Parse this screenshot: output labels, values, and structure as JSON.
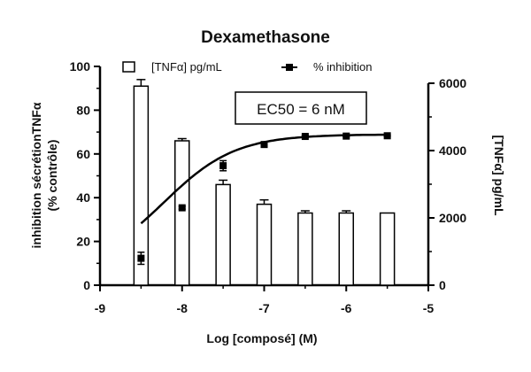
{
  "chart_data": {
    "type": "bar",
    "title": "Dexamethasone",
    "xlabel": "Log [composé] (M)",
    "ylabel_left_line1": "inhibition sécrétionTNFα",
    "ylabel_left_line2": "(% contrôle)",
    "ylabel_right": "[TNFα] pg/mL",
    "xlim": [
      -9,
      -5
    ],
    "ylim_left": [
      0,
      100
    ],
    "ylim_right": [
      0,
      6500
    ],
    "x_ticks": [
      -9,
      -8,
      -7,
      -6,
      -5
    ],
    "y_left_ticks": [
      0,
      20,
      40,
      60,
      80,
      100
    ],
    "y_right_ticks": [
      0,
      2000,
      4000,
      6000
    ],
    "x_tick_labels": [
      "-9",
      "-8",
      "-7",
      "-6",
      "-5"
    ],
    "y_left_tick_labels": [
      "0",
      "20",
      "40",
      "60",
      "80",
      "100"
    ],
    "y_right_tick_labels": [
      "0",
      "2000",
      "4000",
      "6000"
    ],
    "bars": {
      "name": "[TNFα] pg/mL",
      "axis": "left",
      "x": [
        -8.5,
        -8.0,
        -7.5,
        -7.0,
        -6.5,
        -6.0,
        -5.5
      ],
      "values": [
        91,
        66,
        46,
        37,
        33,
        33,
        33
      ],
      "errors": [
        3,
        1,
        2,
        2,
        1,
        1,
        0
      ]
    },
    "series": [
      {
        "name": "% inhibition",
        "axis": "right",
        "x": [
          -8.5,
          -8.0,
          -7.5,
          -7.0,
          -6.5,
          -6.0,
          -5.5
        ],
        "values": [
          800,
          2300,
          3550,
          4180,
          4420,
          4430,
          4440
        ],
        "errors": [
          180,
          40,
          150,
          40,
          30,
          20,
          20
        ]
      }
    ],
    "fit_curve": {
      "model": "sigmoidal",
      "bottom": 450,
      "top": 4480,
      "log_ec50": -8.22,
      "hill": 1.0
    },
    "annotation": "EC50 = 6 nM",
    "legend_position": "top",
    "grid": false,
    "colors": {
      "bar_fill": "#ffffff",
      "bar_stroke": "#000000",
      "line": "#000000"
    }
  }
}
